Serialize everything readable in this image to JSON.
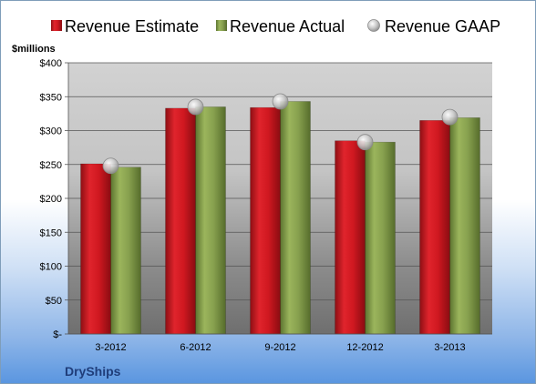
{
  "company": "DryShips",
  "chart_data": {
    "type": "bar",
    "unit_label": "$millions",
    "categories": [
      "3-2012",
      "6-2012",
      "9-2012",
      "12-2012",
      "3-2013"
    ],
    "series": [
      {
        "name": "Revenue Estimate",
        "kind": "bar",
        "color": "#c0141c",
        "values": [
          251,
          333,
          334,
          285,
          315
        ]
      },
      {
        "name": "Revenue Actual",
        "kind": "bar",
        "color": "#7f9a48",
        "values": [
          246,
          335,
          343,
          283,
          319
        ]
      },
      {
        "name": "Revenue GAAP",
        "kind": "marker",
        "color": "#c8c8c8",
        "values": [
          248,
          335,
          343,
          283,
          320
        ]
      }
    ],
    "y_ticks": [
      "$-",
      "$50",
      "$100",
      "$150",
      "$200",
      "$250",
      "$300",
      "$350",
      "$400"
    ],
    "ylim": [
      0,
      400
    ],
    "grid": true,
    "legend_position": "top"
  }
}
